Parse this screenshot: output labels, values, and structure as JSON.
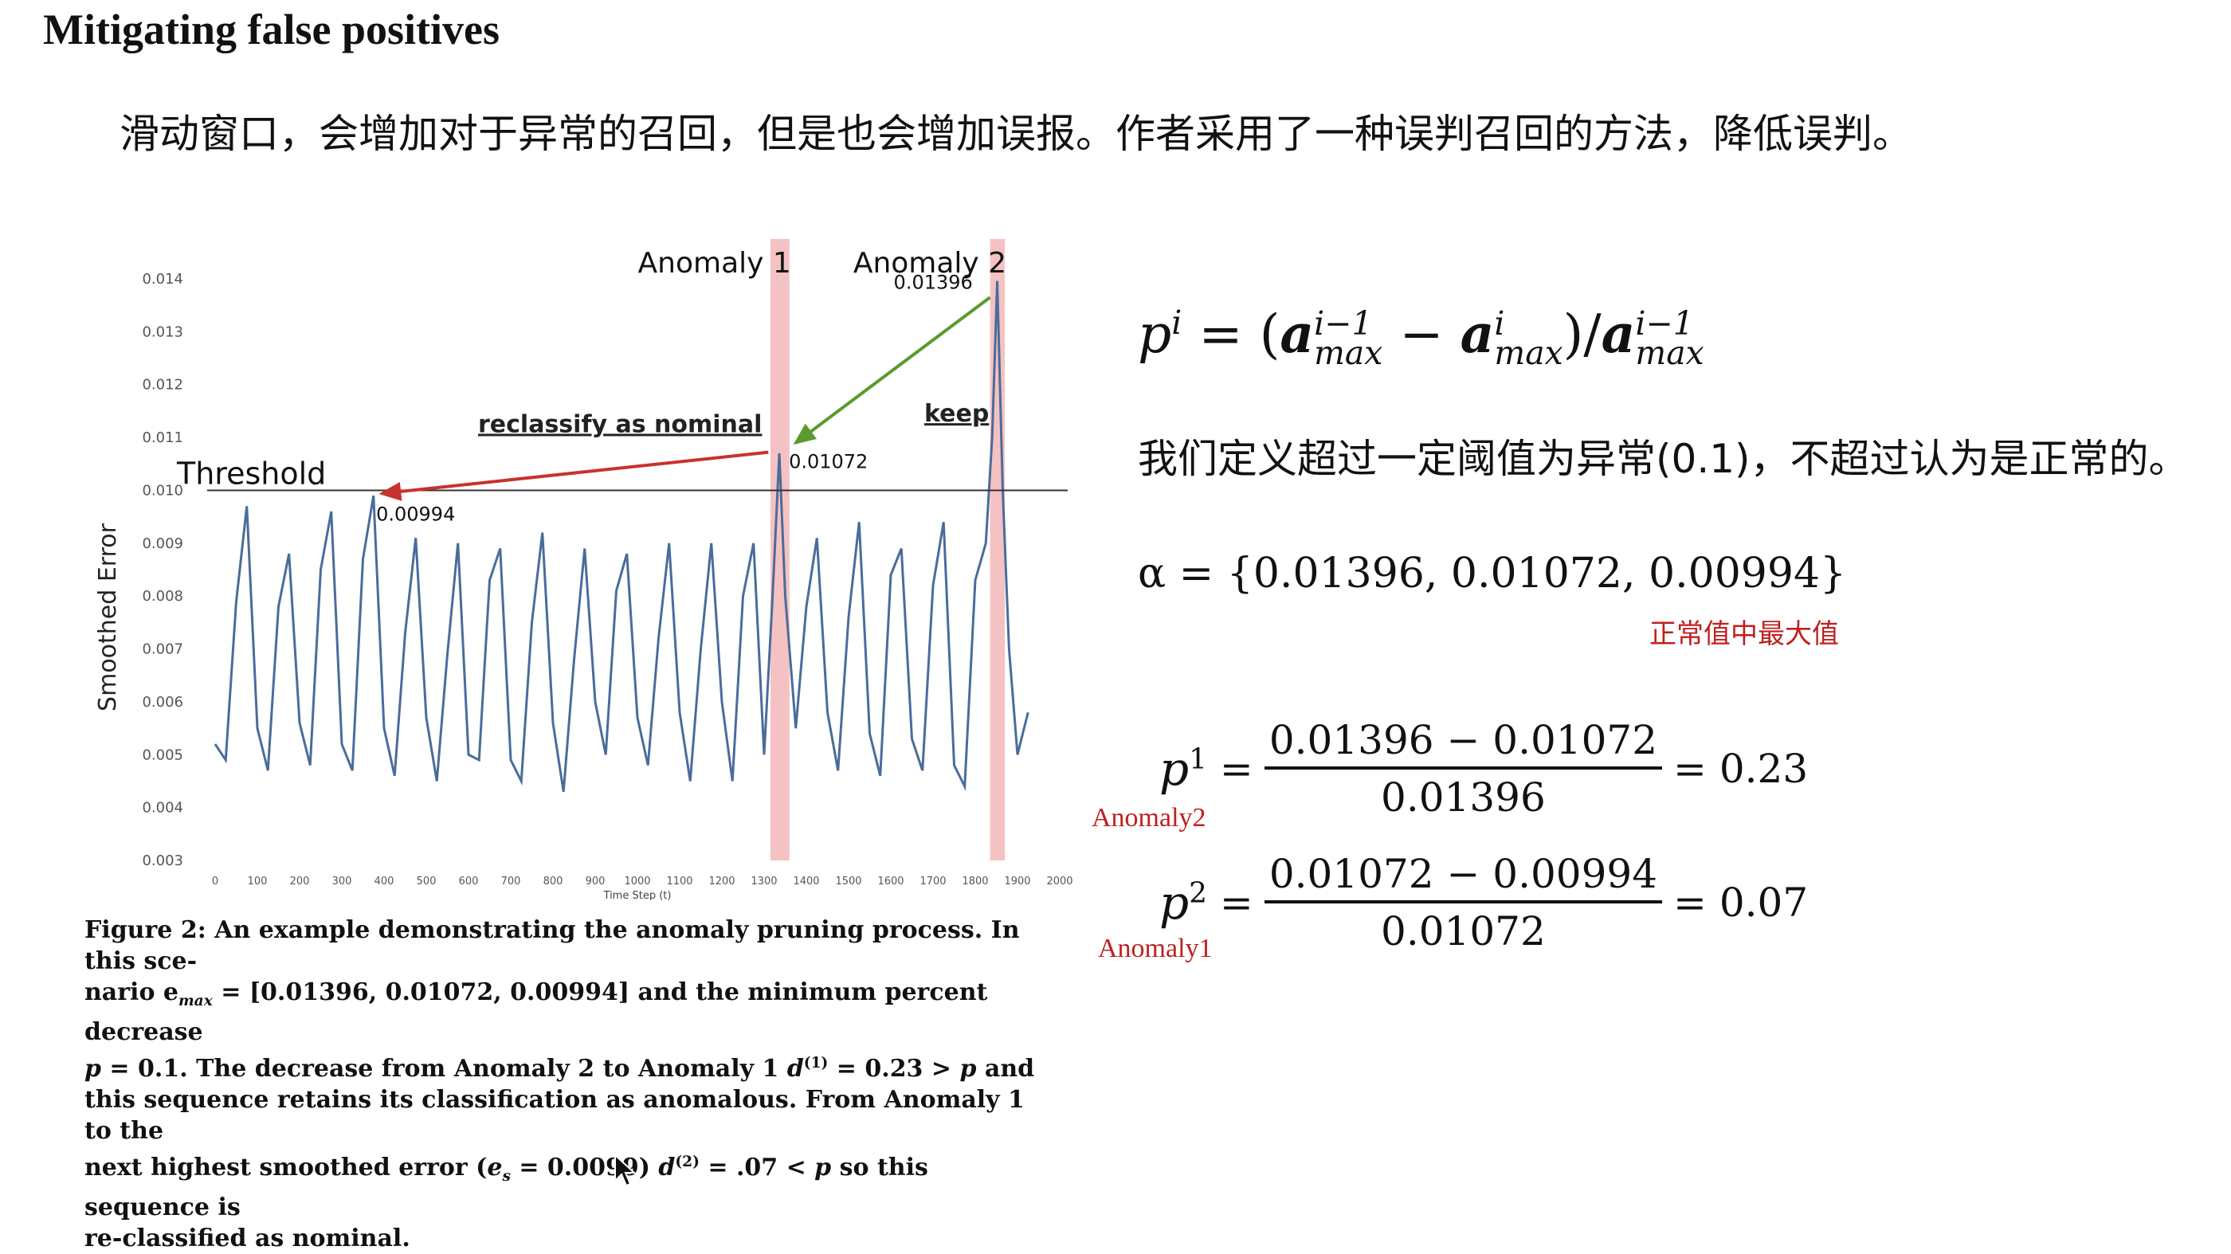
{
  "slide": {
    "title": "Mitigating false positives",
    "subtitle": "滑动窗口，会增加对于异常的召回，但是也会增加误报。作者采用了一种误判召回的方法，降低误判。"
  },
  "chart_data": {
    "type": "line",
    "ylabel": "Smoothed Error",
    "xlabel": "Time Step (t)",
    "xlim": [
      0,
      2000
    ],
    "ylim": [
      0.003,
      0.014
    ],
    "xticks": [
      "0",
      "100",
      "200",
      "300",
      "400",
      "500",
      "600",
      "700",
      "800",
      "900",
      "1000",
      "1100",
      "1200",
      "1300",
      "1400",
      "1500",
      "1600",
      "1700",
      "1800",
      "1900",
      "2000"
    ],
    "yticks": [
      "0.003",
      "0.004",
      "0.005",
      "0.006",
      "0.007",
      "0.008",
      "0.009",
      "0.010",
      "0.011",
      "0.012",
      "0.013",
      "0.014"
    ],
    "threshold": {
      "label": "Threshold",
      "value": 0.01
    },
    "anomaly_regions": [
      {
        "label": "Anomaly 1",
        "x_start": 1315,
        "x_end": 1360
      },
      {
        "label": "Anomaly 2",
        "x_start": 1835,
        "x_end": 1870
      }
    ],
    "peak_labels": [
      {
        "text": "0.01396",
        "x": 1852,
        "y": 0.01396
      },
      {
        "text": "0.01072",
        "x": 1336,
        "y": 0.01072
      },
      {
        "text": "0.00994",
        "x": 370,
        "y": 0.00994
      }
    ],
    "annotations": {
      "reclassify": "reclassify as nominal",
      "keep": "keep"
    },
    "series": [
      {
        "x": [
          0,
          25,
          50,
          75,
          100,
          125,
          150,
          175,
          200,
          225,
          250,
          275,
          300,
          325,
          350,
          375,
          400,
          425,
          450,
          475,
          500,
          525,
          550,
          575,
          600,
          625,
          650,
          675,
          700,
          725,
          750,
          775,
          800,
          825,
          850,
          875,
          900,
          925,
          950,
          975,
          1000,
          1025,
          1050,
          1075,
          1100,
          1125,
          1150,
          1175,
          1200,
          1225,
          1250,
          1275,
          1300,
          1320,
          1336,
          1350,
          1375,
          1400,
          1425,
          1450,
          1475,
          1500,
          1525,
          1550,
          1575,
          1600,
          1625,
          1650,
          1675,
          1700,
          1725,
          1750,
          1775,
          1800,
          1825,
          1840,
          1852,
          1865,
          1880,
          1900,
          1925
        ],
        "y": [
          0.0052,
          0.0049,
          0.0079,
          0.0097,
          0.0055,
          0.0047,
          0.0078,
          0.0088,
          0.0056,
          0.0048,
          0.0085,
          0.0096,
          0.0052,
          0.0047,
          0.0087,
          0.0099,
          0.0055,
          0.0046,
          0.0073,
          0.0091,
          0.0057,
          0.0045,
          0.0069,
          0.009,
          0.005,
          0.0049,
          0.0083,
          0.0089,
          0.0049,
          0.0045,
          0.0075,
          0.0092,
          0.0056,
          0.0043,
          0.0068,
          0.0089,
          0.006,
          0.005,
          0.0081,
          0.0088,
          0.0057,
          0.0048,
          0.0072,
          0.009,
          0.0058,
          0.0045,
          0.007,
          0.009,
          0.006,
          0.0045,
          0.008,
          0.009,
          0.005,
          0.008,
          0.0107,
          0.008,
          0.0055,
          0.0078,
          0.0091,
          0.0058,
          0.0047,
          0.0076,
          0.0094,
          0.0054,
          0.0046,
          0.0084,
          0.0089,
          0.0053,
          0.0047,
          0.0082,
          0.0094,
          0.0048,
          0.0044,
          0.0083,
          0.009,
          0.011,
          0.01396,
          0.01,
          0.007,
          0.005,
          0.0058
        ]
      }
    ]
  },
  "caption": {
    "line1": "Figure 2: An example demonstrating the anomaly pruning process. In this sce-",
    "line2a": "nario e",
    "line2_sub": "max",
    "line2b": " = [0.01396, 0.01072, 0.00994] and the minimum percent decrease",
    "line3a": "p",
    "line3b": " = 0.1. The decrease from Anomaly 2 to Anomaly 1 ",
    "line3c": "d",
    "line3_sup": "(1)",
    "line3d": " = 0.23 > ",
    "line3e": "p",
    "line3f": " and",
    "line4": "this sequence retains its classification as anomalous. From Anomaly 1 to the",
    "line5a": "next highest smoothed error (",
    "line5b": "e",
    "line5_sub": "s",
    "line5c": " = 0.0099) ",
    "line5d": "d",
    "line5_sup": "(2)",
    "line5e": " = .07 < ",
    "line5f": "p",
    "line5g": " so this sequence is",
    "line6": "re-classified as nominal."
  },
  "right_panel": {
    "definition_text": "我们定义超过一定阈值为异常(0.1)，不超过认为是正常的。",
    "alpha_set": "α = {0.01396, 0.01072, 0.00994}",
    "normal_max_note": "正常值中最大值",
    "p1": {
      "lhs": "p",
      "sup": "1",
      "num": "0.01396 − 0.01072",
      "den": "0.01396",
      "result": "= 0.23",
      "label": "Anomaly2"
    },
    "p2": {
      "lhs": "p",
      "sup": "2",
      "num": "0.01072 − 0.00994",
      "den": "0.01072",
      "result": "= 0.07",
      "label": "Anomaly1"
    }
  },
  "colors": {
    "series": "#4a6c9b",
    "anomaly_band": "#f4c2c2",
    "red_arrow": "#c8322d",
    "green_arrow": "#5a9a2e",
    "label_red": "#c02020"
  }
}
